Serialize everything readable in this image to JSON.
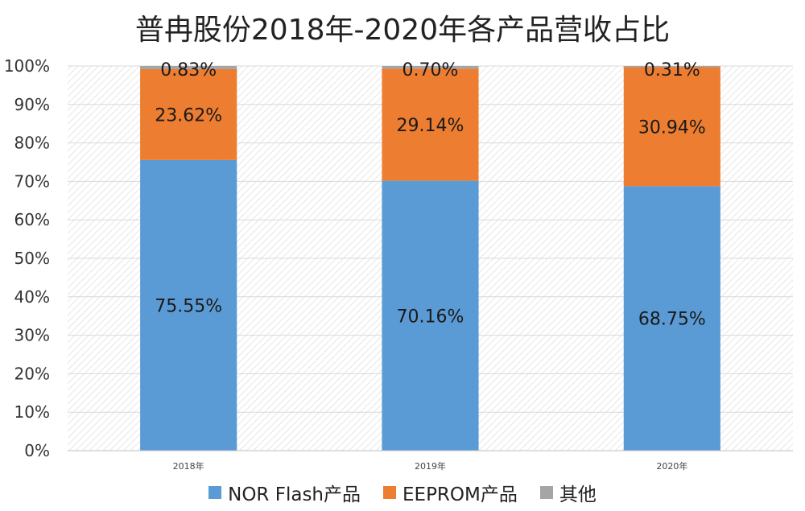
{
  "chart_data": {
    "type": "bar",
    "stacked": true,
    "title": "普冉股份2018年-2020年各产品营收占比",
    "categories": [
      "2018年",
      "2019年",
      "2020年"
    ],
    "series": [
      {
        "name": "NOR Flash产品",
        "values": [
          75.55,
          70.16,
          68.75
        ],
        "labels": [
          "75.55%",
          "70.16%",
          "68.75%"
        ],
        "color": "#5b9bd5"
      },
      {
        "name": "EEPROM产品",
        "values": [
          23.62,
          29.14,
          30.94
        ],
        "labels": [
          "23.62%",
          "29.14%",
          "30.94%"
        ],
        "color": "#ed7d31"
      },
      {
        "name": "其他",
        "values": [
          0.83,
          0.7,
          0.31
        ],
        "labels": [
          "0.83%",
          "0.70%",
          "0.31%"
        ],
        "color": "#a5a5a5"
      }
    ],
    "y_ticks": [
      "0%",
      "10%",
      "20%",
      "30%",
      "40%",
      "50%",
      "60%",
      "70%",
      "80%",
      "90%",
      "100%"
    ],
    "ylim": [
      0,
      100
    ],
    "grid": true,
    "legend_position": "bottom"
  }
}
